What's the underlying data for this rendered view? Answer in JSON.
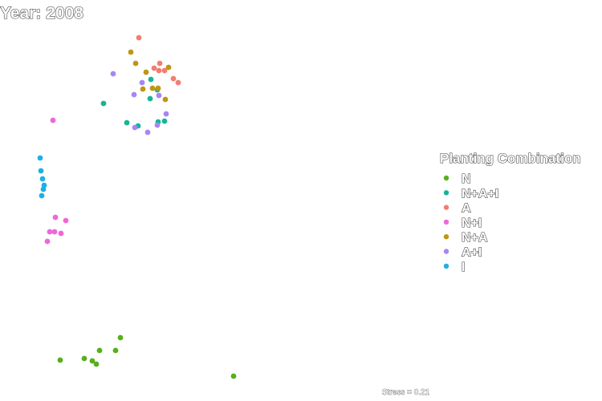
{
  "chart_data": {
    "type": "scatter",
    "title": "Year: 2008",
    "annotation": "Stress = 0.21",
    "grid": false,
    "legend": {
      "title": "Planting Combination",
      "placement": "right",
      "entries": [
        {
          "name": "N",
          "color": "#56B01B"
        },
        {
          "name": "N+A+I",
          "color": "#17B595"
        },
        {
          "name": "A",
          "color": "#F27D72"
        },
        {
          "name": "N+I",
          "color": "#EF67D9"
        },
        {
          "name": "N+A",
          "color": "#BD9712"
        },
        {
          "name": "A+I",
          "color": "#A885F5"
        },
        {
          "name": "I",
          "color": "#1EB0E4"
        }
      ]
    },
    "series": [
      {
        "name": "N",
        "color": "#56B01B",
        "points": [
          [
            75,
            449
          ],
          [
            105,
            447
          ],
          [
            115,
            450
          ],
          [
            120,
            454
          ],
          [
            124,
            437
          ],
          [
            144,
            437
          ],
          [
            150,
            421
          ],
          [
            291,
            469
          ]
        ]
      },
      {
        "name": "N+A+I",
        "color": "#17B595",
        "points": [
          [
            129,
            129
          ],
          [
            188,
            99
          ],
          [
            196,
            112
          ],
          [
            187,
            123
          ],
          [
            158,
            153
          ],
          [
            172,
            157
          ],
          [
            197,
            152
          ],
          [
            205,
            151
          ]
        ]
      },
      {
        "name": "A",
        "color": "#F27D72",
        "points": [
          [
            173,
            47
          ],
          [
            192,
            85
          ],
          [
            199,
            79
          ],
          [
            198,
            88
          ],
          [
            205,
            88
          ],
          [
            216,
            98
          ],
          [
            222,
            103
          ]
        ]
      },
      {
        "name": "N+I",
        "color": "#EF67D9",
        "points": [
          [
            66,
            150
          ],
          [
            69,
            271
          ],
          [
            82,
            275
          ],
          [
            62,
            289
          ],
          [
            68,
            289
          ],
          [
            76,
            291
          ],
          [
            59,
            301
          ]
        ]
      },
      {
        "name": "N+A",
        "color": "#BD9712",
        "points": [
          [
            163,
            65
          ],
          [
            169,
            79
          ],
          [
            182,
            90
          ],
          [
            210,
            84
          ],
          [
            178,
            111
          ],
          [
            190,
            110
          ],
          [
            197,
            110
          ],
          [
            206,
            124
          ]
        ]
      },
      {
        "name": "A+I",
        "color": "#A885F5",
        "points": [
          [
            141,
            92
          ],
          [
            177,
            103
          ],
          [
            167,
            118
          ],
          [
            198,
            119
          ],
          [
            207,
            142
          ],
          [
            168,
            159
          ],
          [
            196,
            156
          ],
          [
            184,
            165
          ]
        ]
      },
      {
        "name": "I",
        "color": "#1EB0E4",
        "points": [
          [
            50,
            197
          ],
          [
            51,
            213
          ],
          [
            53,
            223
          ],
          [
            55,
            231
          ],
          [
            54,
            236
          ],
          [
            52,
            244
          ]
        ]
      }
    ]
  }
}
